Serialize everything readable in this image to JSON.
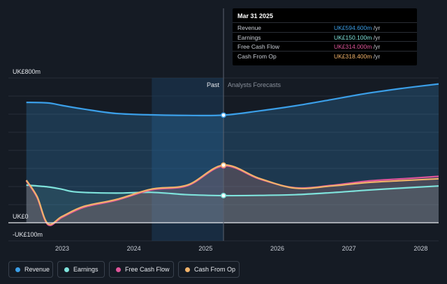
{
  "tooltip": {
    "date": "Mar 31 2025",
    "rows": [
      {
        "label": "Revenue",
        "value": "UK£594.600m",
        "unit": "/yr",
        "color": "#3b9fe8"
      },
      {
        "label": "Earnings",
        "value": "UK£150.100m",
        "unit": "/yr",
        "color": "#7fe3dc"
      },
      {
        "label": "Free Cash Flow",
        "value": "UK£314.000m",
        "unit": "/yr",
        "color": "#e0559a"
      },
      {
        "label": "Cash From Op",
        "value": "UK£318.400m",
        "unit": "/yr",
        "color": "#f2b36a"
      }
    ]
  },
  "legend": [
    {
      "label": "Revenue",
      "color": "#3b9fe8"
    },
    {
      "label": "Earnings",
      "color": "#7fe3dc"
    },
    {
      "label": "Free Cash Flow",
      "color": "#e0559a"
    },
    {
      "label": "Cash From Op",
      "color": "#f2b36a"
    }
  ],
  "chart_data": {
    "type": "line",
    "ylim": [
      -100,
      800
    ],
    "xlim": [
      2022.25,
      2028.25
    ],
    "y_tick_labels": [
      {
        "value": 800,
        "label": "UK£800m"
      },
      {
        "value": 0,
        "label": "UK£0"
      },
      {
        "value": -100,
        "label": "-UK£100m"
      }
    ],
    "x_tick_labels": [
      {
        "value": 2023,
        "label": "2023"
      },
      {
        "value": 2024,
        "label": "2024"
      },
      {
        "value": 2025,
        "label": "2025"
      },
      {
        "value": 2026,
        "label": "2026"
      },
      {
        "value": 2027,
        "label": "2027"
      },
      {
        "value": 2028,
        "label": "2028"
      }
    ],
    "past_label": "Past",
    "forecast_label": "Analysts Forecasts",
    "divider_x": 2025.25,
    "highlight_start": 2024.25,
    "series": [
      {
        "name": "Revenue",
        "color": "#3b9fe8",
        "points": [
          [
            2022.5,
            665
          ],
          [
            2022.8,
            662
          ],
          [
            2023.0,
            648
          ],
          [
            2023.3,
            628
          ],
          [
            2023.75,
            604
          ],
          [
            2024.25,
            596
          ],
          [
            2024.75,
            593
          ],
          [
            2025.25,
            594.6
          ],
          [
            2025.75,
            618
          ],
          [
            2026.25,
            646
          ],
          [
            2026.75,
            680
          ],
          [
            2027.25,
            715
          ],
          [
            2027.75,
            743
          ],
          [
            2028.25,
            767
          ]
        ]
      },
      {
        "name": "Earnings",
        "color": "#7fe3dc",
        "points": [
          [
            2022.5,
            208
          ],
          [
            2022.8,
            198
          ],
          [
            2023.0,
            185
          ],
          [
            2023.2,
            170
          ],
          [
            2023.75,
            164
          ],
          [
            2024.25,
            168
          ],
          [
            2024.75,
            155
          ],
          [
            2025.25,
            150.1
          ],
          [
            2025.75,
            151
          ],
          [
            2026.25,
            155
          ],
          [
            2026.75,
            166
          ],
          [
            2027.25,
            180
          ],
          [
            2027.75,
            192
          ],
          [
            2028.25,
            203
          ]
        ]
      },
      {
        "name": "Free Cash Flow",
        "color": "#e0559a",
        "points": [
          [
            2022.5,
            232
          ],
          [
            2022.65,
            140
          ],
          [
            2022.8,
            -10
          ],
          [
            2023.0,
            30
          ],
          [
            2023.3,
            85
          ],
          [
            2023.75,
            124
          ],
          [
            2024.25,
            182
          ],
          [
            2024.75,
            205
          ],
          [
            2025.25,
            314
          ],
          [
            2025.75,
            242
          ],
          [
            2026.25,
            193
          ],
          [
            2026.75,
            206
          ],
          [
            2027.25,
            230
          ],
          [
            2027.75,
            243
          ],
          [
            2028.25,
            256
          ]
        ]
      },
      {
        "name": "Cash From Op",
        "color": "#f2b36a",
        "points": [
          [
            2022.5,
            235
          ],
          [
            2022.65,
            145
          ],
          [
            2022.8,
            -5
          ],
          [
            2023.0,
            35
          ],
          [
            2023.3,
            90
          ],
          [
            2023.75,
            128
          ],
          [
            2024.25,
            186
          ],
          [
            2024.75,
            209
          ],
          [
            2025.25,
            318.4
          ],
          [
            2025.75,
            245
          ],
          [
            2026.25,
            191
          ],
          [
            2026.75,
            203
          ],
          [
            2027.25,
            222
          ],
          [
            2027.75,
            233
          ],
          [
            2028.25,
            243
          ]
        ]
      }
    ]
  }
}
